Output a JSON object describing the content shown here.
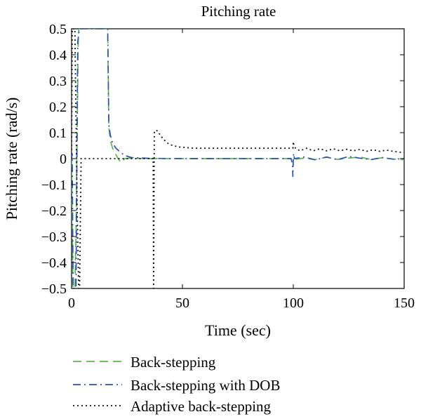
{
  "chart_data": {
    "type": "line",
    "title": "Pitching rate",
    "xlabel": "Time (sec)",
    "ylabel": "Pitching rate (rad/s)",
    "xlim": [
      0,
      150
    ],
    "ylim": [
      -0.5,
      0.5
    ],
    "xticks": [
      0,
      50,
      100,
      150
    ],
    "yticks": [
      0.5,
      0.4,
      0.3,
      0.2,
      0.1,
      0,
      -0.1,
      -0.2,
      -0.3,
      -0.4,
      -0.5
    ],
    "ytick_labels": [
      "0.5",
      "0.4",
      "0.3",
      "0.2",
      "0.1",
      "0",
      "−0.1",
      "−0.2",
      "−0.3",
      "−0.4",
      "−0.5"
    ],
    "grid": false,
    "legend_position": "bottom",
    "series": [
      {
        "name": "Back-stepping",
        "color": "#5ab84a",
        "dash": "dashed",
        "x": [
          0,
          0.3,
          0.6,
          1.0,
          1.5,
          2.0,
          2.5,
          3.0,
          3.3,
          3.8,
          4.3,
          5.0,
          10.0,
          15.0,
          16.3,
          16.8,
          17.5,
          18.5,
          20.0,
          21.0,
          22.0,
          22.5,
          23.0,
          24.0,
          27.0,
          35.0,
          50.0,
          70.0,
          99.5,
          100.0,
          100.5,
          105.0,
          110.0,
          115.0,
          120.0,
          125.0,
          130.0,
          135.0,
          140.0,
          145.0,
          150.0
        ],
        "y": [
          0,
          -0.2,
          -0.5,
          -0.5,
          -0.5,
          -0.3,
          0.1,
          0.45,
          0.5,
          0.5,
          0.5,
          0.5,
          0.5,
          0.5,
          0.5,
          0.12,
          0.07,
          0.04,
          0.015,
          0.0,
          -0.012,
          -0.015,
          -0.01,
          0.0,
          0.002,
          0.0,
          0.0,
          0.0,
          0.0,
          0.0,
          -0.003,
          0.002,
          -0.004,
          0.006,
          -0.003,
          0.002,
          0.006,
          -0.003,
          0.003,
          -0.002,
          -0.004
        ]
      },
      {
        "name": "Back-stepping with DOB",
        "color": "#2a52b8",
        "dash": "dashdot",
        "x": [
          0,
          0.3,
          0.7,
          1.2,
          2.0,
          2.8,
          3.5,
          4.2,
          5.0,
          10.0,
          15.0,
          16.3,
          16.8,
          17.5,
          18.5,
          20.0,
          22.0,
          24.0,
          27.0,
          35.0,
          50.0,
          70.0,
          99.0,
          99.6,
          99.8,
          100.0,
          100.2,
          100.5,
          105.0,
          110.0,
          115.0,
          120.0,
          125.0,
          130.0,
          135.0,
          140.0,
          145.0,
          150.0
        ],
        "y": [
          0,
          0.02,
          -0.5,
          -0.5,
          -0.5,
          0.45,
          0.5,
          0.5,
          0.5,
          0.5,
          0.5,
          0.5,
          0.13,
          0.09,
          0.06,
          0.04,
          0.025,
          0.012,
          0.004,
          0.001,
          0.0,
          0.0,
          0.0,
          -0.02,
          -0.07,
          0.0,
          0.02,
          0.0,
          0.006,
          -0.005,
          0.006,
          -0.004,
          0.008,
          0.002,
          -0.004,
          0.004,
          -0.002,
          0.0
        ]
      },
      {
        "name": "Adaptive back-stepping",
        "color": "#111111",
        "dash": "dotted",
        "x": [
          0,
          0.3,
          0.8,
          1.5,
          2.5,
          3.2,
          3.6,
          4.3,
          5.0,
          36.8,
          37.0,
          37.3,
          38.0,
          39.0,
          40.0,
          42.0,
          44.0,
          48.0,
          55.0,
          70.0,
          90.0,
          99.0,
          99.8,
          100.0,
          100.3,
          101.0,
          103.0,
          106.0,
          109.0,
          112.0,
          115.0,
          118.0,
          121.0,
          124.0,
          127.0,
          130.0,
          133.0,
          136.0,
          139.0,
          142.0,
          145.0,
          148.0,
          150.0
        ],
        "y": [
          0,
          0.5,
          0.5,
          0.5,
          -0.18,
          -0.5,
          -0.5,
          0.0,
          0.0,
          0.0,
          -0.5,
          0.1,
          0.11,
          0.105,
          0.09,
          0.07,
          0.055,
          0.045,
          0.04,
          0.04,
          0.04,
          0.04,
          0.04,
          0.065,
          0.05,
          0.04,
          0.03,
          0.04,
          0.03,
          0.038,
          0.03,
          0.038,
          0.03,
          0.036,
          0.03,
          0.035,
          0.028,
          0.034,
          0.028,
          0.033,
          0.028,
          0.025,
          0.024
        ]
      }
    ]
  }
}
